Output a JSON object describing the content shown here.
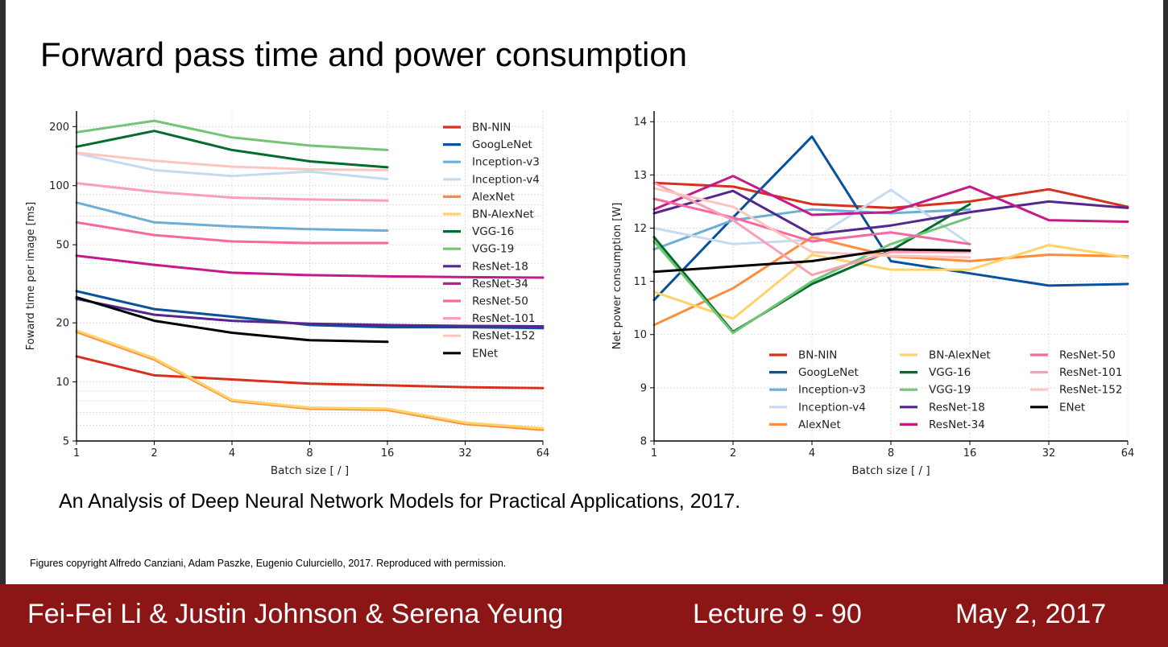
{
  "slide": {
    "title": "Forward pass time and power consumption",
    "citation": "An Analysis of Deep Neural Network Models for Practical Applications, 2017.",
    "copyright": "Figures copyright Alfredo Canziani, Adam Paszke, Eugenio Culurciello, 2017. Reproduced with permission."
  },
  "footer": {
    "authors": "Fei-Fei Li & Justin Johnson & Serena Yeung",
    "lecture": "Lecture 9 - 90",
    "date": "May 2, 2017",
    "bg_color": "#8c1515"
  },
  "chart_data": [
    {
      "type": "line",
      "xlabel": "Batch size [ / ]",
      "ylabel": "Foward time per image [ms]",
      "xscale": "log2",
      "yscale": "log",
      "x_ticks": [
        1,
        2,
        4,
        8,
        16,
        32,
        64
      ],
      "y_ticks": [
        5,
        10,
        20,
        50,
        100,
        200
      ],
      "xlim": [
        1,
        64
      ],
      "ylim": [
        5,
        240
      ],
      "grid": true,
      "legend_position": "top-right",
      "x": [
        1,
        2,
        4,
        8,
        16,
        32,
        64
      ],
      "series": [
        {
          "name": "BN-NIN",
          "color": "#d7301f",
          "values": [
            13.5,
            10.8,
            10.3,
            9.8,
            9.6,
            9.4,
            9.3
          ]
        },
        {
          "name": "GoogLeNet",
          "color": "#08519c",
          "values": [
            29,
            23.5,
            21.5,
            19.5,
            19,
            19,
            18.8
          ]
        },
        {
          "name": "Inception-v3",
          "color": "#6baed6",
          "values": [
            82,
            65,
            62,
            60,
            59,
            null,
            null
          ]
        },
        {
          "name": "Inception-v4",
          "color": "#c6dbef",
          "values": [
            146,
            120,
            112,
            118,
            108,
            null,
            null
          ]
        },
        {
          "name": "AlexNet",
          "color": "#fd8d3c",
          "values": [
            18,
            13,
            8,
            7.3,
            7.2,
            6.1,
            5.7
          ]
        },
        {
          "name": "BN-AlexNet",
          "color": "#fdd36a",
          "values": [
            18.3,
            13.2,
            8.1,
            7.4,
            7.3,
            6.2,
            5.8
          ]
        },
        {
          "name": "VGG-16",
          "color": "#006d2c",
          "values": [
            158,
            190,
            152,
            133,
            124,
            null,
            null
          ]
        },
        {
          "name": "VGG-19",
          "color": "#74c476",
          "values": [
            187,
            214,
            176,
            160,
            152,
            null,
            null
          ]
        },
        {
          "name": "ResNet-18",
          "color": "#54278f",
          "values": [
            26.5,
            22,
            20.5,
            19.8,
            19.5,
            19.3,
            19.2
          ]
        },
        {
          "name": "ResNet-34",
          "color": "#c51b8a",
          "values": [
            44,
            39.5,
            36,
            35,
            34.5,
            34.2,
            34
          ]
        },
        {
          "name": "ResNet-50",
          "color": "#f768a1",
          "values": [
            65,
            56,
            52,
            51,
            51,
            null,
            null
          ]
        },
        {
          "name": "ResNet-101",
          "color": "#fa9fb5",
          "values": [
            103,
            93,
            87,
            85,
            84,
            null,
            null
          ]
        },
        {
          "name": "ResNet-152",
          "color": "#fcc5c0",
          "values": [
            147,
            134,
            125,
            121,
            120,
            null,
            null
          ]
        },
        {
          "name": "ENet",
          "color": "#000000",
          "values": [
            27,
            20.5,
            17.8,
            16.3,
            16,
            null,
            null
          ]
        }
      ]
    },
    {
      "type": "line",
      "xlabel": "Batch size [ / ]",
      "ylabel": "Net power consumption [W]",
      "xscale": "log2",
      "yscale": "linear",
      "x_ticks": [
        1,
        2,
        4,
        8,
        16,
        32,
        64
      ],
      "y_ticks": [
        8,
        9,
        10,
        11,
        12,
        13,
        14
      ],
      "xlim": [
        1,
        64
      ],
      "ylim": [
        8,
        14.2
      ],
      "grid": true,
      "legend_position": "lower-right",
      "x": [
        1,
        2,
        4,
        8,
        16,
        32,
        64
      ],
      "series": [
        {
          "name": "BN-NIN",
          "color": "#d7301f",
          "values": [
            12.85,
            12.78,
            12.45,
            12.38,
            12.5,
            12.73,
            12.4
          ]
        },
        {
          "name": "GoogLeNet",
          "color": "#08519c",
          "values": [
            10.65,
            12.2,
            13.72,
            11.38,
            11.15,
            10.92,
            10.95
          ]
        },
        {
          "name": "Inception-v3",
          "color": "#6baed6",
          "values": [
            11.6,
            12.15,
            12.35,
            12.28,
            12.35,
            null,
            null
          ]
        },
        {
          "name": "Inception-v4",
          "color": "#c6dbef",
          "values": [
            12.0,
            11.7,
            11.78,
            12.72,
            11.7,
            null,
            null
          ]
        },
        {
          "name": "AlexNet",
          "color": "#fd8d3c",
          "values": [
            10.18,
            10.87,
            11.83,
            11.47,
            11.38,
            11.5,
            11.47
          ]
        },
        {
          "name": "BN-AlexNet",
          "color": "#fdd36a",
          "values": [
            10.8,
            10.3,
            11.5,
            11.22,
            11.22,
            11.68,
            11.45
          ]
        },
        {
          "name": "VGG-16",
          "color": "#006d2c",
          "values": [
            11.83,
            10.05,
            10.95,
            11.58,
            12.45,
            null,
            null
          ]
        },
        {
          "name": "VGG-19",
          "color": "#74c476",
          "values": [
            11.75,
            10.03,
            11.0,
            11.7,
            12.2,
            null,
            null
          ]
        },
        {
          "name": "ResNet-18",
          "color": "#54278f",
          "values": [
            12.28,
            12.7,
            11.88,
            12.05,
            12.3,
            12.5,
            12.38
          ]
        },
        {
          "name": "ResNet-34",
          "color": "#c51b8a",
          "values": [
            12.35,
            12.98,
            12.25,
            12.3,
            12.78,
            12.15,
            12.12
          ]
        },
        {
          "name": "ResNet-50",
          "color": "#f768a1",
          "values": [
            12.55,
            12.2,
            11.75,
            11.92,
            11.7,
            null,
            null
          ]
        },
        {
          "name": "ResNet-101",
          "color": "#fa9fb5",
          "values": [
            12.85,
            12.15,
            11.12,
            11.55,
            11.55,
            null,
            null
          ]
        },
        {
          "name": "ResNet-152",
          "color": "#fcc5c0",
          "values": [
            12.75,
            12.4,
            11.55,
            11.48,
            11.45,
            null,
            null
          ]
        },
        {
          "name": "ENet",
          "color": "#000000",
          "values": [
            11.18,
            11.28,
            11.38,
            11.6,
            11.58,
            null,
            null
          ]
        }
      ]
    }
  ]
}
